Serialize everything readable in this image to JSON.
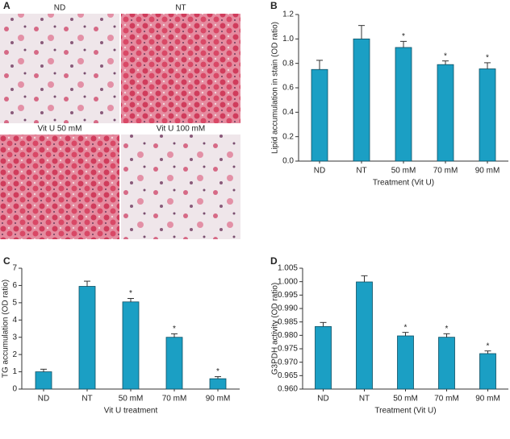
{
  "image_panel": {
    "panel_label": "A",
    "captions": [
      "ND",
      "NT",
      "Vit U 50 mM",
      "Vit U 100 mM"
    ]
  },
  "chart_data": [
    {
      "type": "bar",
      "panel_label": "B",
      "y_label": "Lipid accumulation in stain (OD ratio)",
      "x_label": "Treatment (Vit U)",
      "categories": [
        "ND",
        "NT",
        "50 mM",
        "70 mM",
        "90 mM"
      ],
      "values": [
        0.75,
        1.0,
        0.93,
        0.79,
        0.755
      ],
      "errors": [
        0.075,
        0.11,
        0.05,
        0.03,
        0.05
      ],
      "markers": [
        null,
        null,
        "*",
        "*",
        "*"
      ],
      "color": "#1b9fc4",
      "ylim": [
        0,
        1.2
      ],
      "yticks": [
        {
          "value": 0,
          "label": "0.0"
        },
        0.2,
        0.4,
        0.6,
        0.8,
        {
          "value": 1,
          "label": "1.0"
        },
        1.2
      ]
    },
    {
      "type": "bar",
      "panel_label": "C",
      "y_label": "TG accumulation (OD ratio)",
      "x_label": "Vit U treatment",
      "categories": [
        "ND",
        "NT",
        "50 mM",
        "70 mM",
        "90 mM"
      ],
      "values": [
        1.0,
        5.95,
        5.05,
        3.0,
        0.6
      ],
      "errors": [
        0.15,
        0.3,
        0.2,
        0.2,
        0.12
      ],
      "markers": [
        null,
        null,
        "*",
        "*",
        "*"
      ],
      "color": "#1b9fc4",
      "ylim": [
        0,
        7
      ],
      "yticks": [
        0,
        1,
        2,
        3,
        4,
        5,
        6,
        7
      ]
    },
    {
      "type": "bar",
      "panel_label": "D",
      "y_label": "G3PDH activity (OD ratio)",
      "x_label": "Treatment (Vit U)",
      "categories": [
        "ND",
        "NT",
        "50 mM",
        "70 mM",
        "90 mM"
      ],
      "values": [
        0.9833,
        0.9999,
        0.9798,
        0.9793,
        0.9732
      ],
      "errors": [
        0.0015,
        0.0023,
        0.0013,
        0.0013,
        0.001
      ],
      "markers": [
        null,
        null,
        "*",
        "*",
        "*"
      ],
      "color": "#1b9fc4",
      "ylim": [
        0.96,
        1.005
      ],
      "yticks": [
        {
          "value": 0.96,
          "label": "0.960"
        },
        0.965,
        {
          "value": 0.97,
          "label": "0.970"
        },
        0.975,
        {
          "value": 0.98,
          "label": "0.980"
        },
        0.985,
        {
          "value": 0.99,
          "label": "0.990"
        },
        0.995,
        {
          "value": 1,
          "label": "1.000"
        },
        1.005
      ]
    }
  ]
}
